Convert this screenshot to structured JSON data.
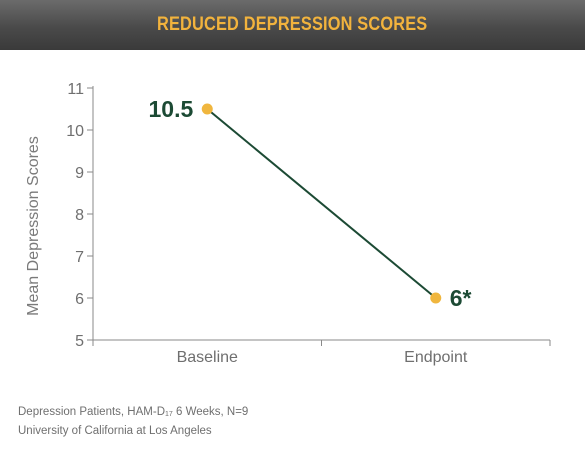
{
  "header": {
    "title": "REDUCED DEPRESSION SCORES"
  },
  "chart_data": {
    "type": "line",
    "title": "REDUCED DEPRESSION SCORES",
    "categories": [
      "Baseline",
      "Endpoint"
    ],
    "values": [
      10.5,
      6
    ],
    "data_labels": [
      "10.5",
      "6*"
    ],
    "xlabel": "",
    "ylabel": "Mean Depression Scores",
    "ylim": [
      5,
      11
    ],
    "yticks": [
      5,
      6,
      7,
      8,
      9,
      10,
      11
    ],
    "grid": false,
    "line_color": "#1c4a34",
    "marker_color": "#f0b63e",
    "label_color": "#1c4a34"
  },
  "footnote": {
    "line1_prefix": "Depression Patients, HAM-D",
    "line1_sub": "17",
    "line1_suffix": " 6 Weeks, N=9",
    "line2": "University of California at Los Angeles"
  },
  "colors": {
    "banner_text": "#f2b33d",
    "axis": "#8a8a8a",
    "tick_text": "#6f6f6f"
  }
}
